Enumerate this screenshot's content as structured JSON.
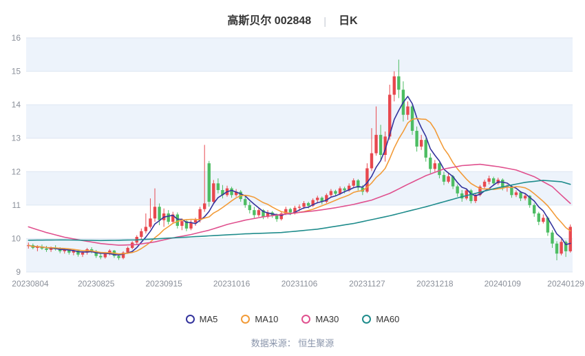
{
  "page": {
    "title_main": "高斯贝尔 002848",
    "title_separator": "|",
    "title_sub": "日K",
    "footer": "数据来源： 恒生聚源"
  },
  "chart_data": {
    "type": "candlestick",
    "title": "高斯贝尔 002848 日K",
    "ylim": [
      9,
      16
    ],
    "yticks": [
      9,
      10,
      11,
      12,
      13,
      14,
      15,
      16
    ],
    "xticks": [
      {
        "index": 0,
        "label": "20230804"
      },
      {
        "index": 15,
        "label": "20230825"
      },
      {
        "index": 30,
        "label": "20230915"
      },
      {
        "index": 45,
        "label": "20231016"
      },
      {
        "index": 60,
        "label": "20231106"
      },
      {
        "index": 75,
        "label": "20231127"
      },
      {
        "index": 90,
        "label": "20231218"
      },
      {
        "index": 105,
        "label": "20240109"
      },
      {
        "index": 120,
        "label": "20240129"
      }
    ],
    "grid": true,
    "band_color": "#edf3fb",
    "grid_color": "#dde6f2",
    "axis_label_color": "#8a8f99",
    "up_color": "#e8484e",
    "down_color": "#4dbd63",
    "candles": [
      [
        9.78,
        9.88,
        9.7,
        9.8
      ],
      [
        9.8,
        9.85,
        9.68,
        9.72
      ],
      [
        9.72,
        9.8,
        9.62,
        9.76
      ],
      [
        9.76,
        9.82,
        9.66,
        9.7
      ],
      [
        9.7,
        9.78,
        9.6,
        9.66
      ],
      [
        9.66,
        9.76,
        9.6,
        9.72
      ],
      [
        9.72,
        9.8,
        9.64,
        9.68
      ],
      [
        9.68,
        9.74,
        9.56,
        9.62
      ],
      [
        9.62,
        9.72,
        9.55,
        9.68
      ],
      [
        9.68,
        9.7,
        9.52,
        9.58
      ],
      [
        9.58,
        9.68,
        9.5,
        9.64
      ],
      [
        9.64,
        9.66,
        9.46,
        9.52
      ],
      [
        9.52,
        9.62,
        9.45,
        9.58
      ],
      [
        9.58,
        9.72,
        9.52,
        9.68
      ],
      [
        9.68,
        9.74,
        9.56,
        9.62
      ],
      [
        9.62,
        9.66,
        9.42,
        9.48
      ],
      [
        9.48,
        9.58,
        9.38,
        9.44
      ],
      [
        9.44,
        9.6,
        9.4,
        9.56
      ],
      [
        9.56,
        9.68,
        9.5,
        9.64
      ],
      [
        9.64,
        9.66,
        9.42,
        9.48
      ],
      [
        9.48,
        9.54,
        9.36,
        9.42
      ],
      [
        9.42,
        9.62,
        9.38,
        9.58
      ],
      [
        9.58,
        9.76,
        9.54,
        9.72
      ],
      [
        9.72,
        9.92,
        9.68,
        9.88
      ],
      [
        9.88,
        10.1,
        9.82,
        10.05
      ],
      [
        10.05,
        10.3,
        9.98,
        10.22
      ],
      [
        10.22,
        10.75,
        10.15,
        10.35
      ],
      [
        10.35,
        11.2,
        10.3,
        10.6
      ],
      [
        10.6,
        11.5,
        10.5,
        10.95
      ],
      [
        10.95,
        11.05,
        10.4,
        10.55
      ],
      [
        10.55,
        10.9,
        10.35,
        10.75
      ],
      [
        10.75,
        10.85,
        10.42,
        10.5
      ],
      [
        10.5,
        10.8,
        10.45,
        10.72
      ],
      [
        10.72,
        10.78,
        10.3,
        10.38
      ],
      [
        10.38,
        10.6,
        10.25,
        10.52
      ],
      [
        10.52,
        10.58,
        10.22,
        10.3
      ],
      [
        10.3,
        10.55,
        10.25,
        10.48
      ],
      [
        10.48,
        10.62,
        10.38,
        10.55
      ],
      [
        10.55,
        10.95,
        10.48,
        10.88
      ],
      [
        10.88,
        12.8,
        10.8,
        11.05
      ],
      [
        12.25,
        12.32,
        10.95,
        11.1
      ],
      [
        11.1,
        11.75,
        11.05,
        11.65
      ],
      [
        11.65,
        11.8,
        11.35,
        11.45
      ],
      [
        11.45,
        11.6,
        11.2,
        11.3
      ],
      [
        11.3,
        11.58,
        11.25,
        11.5
      ],
      [
        11.5,
        11.55,
        11.22,
        11.3
      ],
      [
        11.3,
        11.48,
        11.25,
        11.4
      ],
      [
        11.4,
        11.45,
        11.1,
        11.18
      ],
      [
        11.18,
        11.3,
        10.92,
        11.0
      ],
      [
        11.0,
        11.1,
        10.75,
        10.85
      ],
      [
        10.85,
        10.95,
        10.62,
        10.7
      ],
      [
        10.7,
        10.92,
        10.65,
        10.85
      ],
      [
        10.85,
        10.88,
        10.58,
        10.65
      ],
      [
        10.65,
        10.85,
        10.6,
        10.78
      ],
      [
        10.78,
        10.82,
        10.62,
        10.7
      ],
      [
        10.7,
        10.75,
        10.5,
        10.58
      ],
      [
        10.58,
        10.8,
        10.54,
        10.75
      ],
      [
        10.75,
        10.95,
        10.7,
        10.88
      ],
      [
        10.88,
        10.92,
        10.7,
        10.78
      ],
      [
        10.78,
        10.98,
        10.72,
        10.92
      ],
      [
        10.92,
        11.02,
        10.82,
        10.95
      ],
      [
        10.95,
        11.12,
        10.88,
        11.06
      ],
      [
        11.06,
        11.1,
        10.9,
        10.98
      ],
      [
        10.98,
        11.2,
        10.94,
        11.15
      ],
      [
        11.15,
        11.28,
        11.05,
        11.22
      ],
      [
        11.22,
        11.26,
        11.02,
        11.1
      ],
      [
        11.1,
        11.35,
        11.06,
        11.3
      ],
      [
        11.3,
        11.48,
        11.24,
        11.42
      ],
      [
        11.42,
        11.46,
        11.26,
        11.34
      ],
      [
        11.34,
        11.56,
        11.3,
        11.5
      ],
      [
        11.5,
        11.55,
        11.35,
        11.44
      ],
      [
        11.44,
        11.65,
        11.4,
        11.58
      ],
      [
        11.58,
        11.8,
        11.52,
        11.74
      ],
      [
        11.74,
        11.78,
        11.44,
        11.52
      ],
      [
        11.52,
        11.6,
        11.3,
        11.4
      ],
      [
        11.4,
        12.25,
        11.36,
        12.1
      ],
      [
        12.1,
        13.3,
        12.02,
        12.55
      ],
      [
        12.55,
        13.95,
        12.48,
        13.1
      ],
      [
        13.1,
        13.4,
        12.35,
        12.5
      ],
      [
        12.5,
        13.2,
        12.3,
        13.05
      ],
      [
        13.05,
        14.6,
        12.95,
        14.3
      ],
      [
        14.3,
        15.0,
        14.1,
        14.85
      ],
      [
        14.85,
        15.35,
        14.2,
        14.45
      ],
      [
        14.45,
        14.7,
        13.5,
        13.7
      ],
      [
        13.7,
        14.1,
        13.55,
        13.95
      ],
      [
        13.95,
        14.0,
        13.1,
        13.22
      ],
      [
        13.22,
        13.35,
        12.6,
        12.75
      ],
      [
        12.75,
        13.1,
        12.65,
        12.95
      ],
      [
        12.95,
        13.0,
        12.3,
        12.42
      ],
      [
        12.42,
        12.55,
        11.95,
        12.08
      ],
      [
        12.08,
        12.35,
        12.0,
        12.25
      ],
      [
        12.25,
        12.28,
        11.8,
        11.9
      ],
      [
        11.9,
        12.0,
        11.6,
        11.7
      ],
      [
        11.7,
        11.95,
        11.65,
        11.86
      ],
      [
        11.86,
        11.9,
        11.48,
        11.56
      ],
      [
        11.56,
        11.62,
        11.25,
        11.35
      ],
      [
        11.35,
        11.45,
        11.1,
        11.2
      ],
      [
        11.2,
        11.5,
        11.15,
        11.44
      ],
      [
        11.44,
        11.48,
        11.05,
        11.12
      ],
      [
        11.12,
        11.35,
        11.06,
        11.3
      ],
      [
        11.3,
        11.6,
        11.26,
        11.55
      ],
      [
        11.55,
        11.76,
        11.5,
        11.7
      ],
      [
        11.7,
        11.88,
        11.62,
        11.8
      ],
      [
        11.8,
        11.85,
        11.58,
        11.65
      ],
      [
        11.65,
        11.82,
        11.6,
        11.76
      ],
      [
        11.76,
        11.8,
        11.44,
        11.52
      ],
      [
        11.52,
        11.62,
        11.4,
        11.56
      ],
      [
        11.56,
        11.58,
        11.22,
        11.3
      ],
      [
        11.3,
        11.44,
        11.24,
        11.38
      ],
      [
        11.38,
        11.42,
        11.12,
        11.2
      ],
      [
        11.2,
        11.34,
        11.14,
        11.28
      ],
      [
        11.28,
        11.3,
        10.92,
        11.0
      ],
      [
        11.0,
        11.05,
        10.65,
        10.75
      ],
      [
        10.75,
        10.8,
        10.4,
        10.5
      ],
      [
        10.5,
        10.72,
        10.45,
        10.62
      ],
      [
        10.62,
        10.66,
        10.08,
        10.18
      ],
      [
        10.18,
        10.25,
        9.72,
        9.85
      ],
      [
        9.85,
        9.92,
        9.35,
        9.55
      ],
      [
        9.55,
        9.98,
        9.5,
        9.9
      ],
      [
        9.9,
        9.94,
        9.45,
        9.62
      ],
      [
        9.62,
        10.42,
        9.58,
        10.35
      ]
    ],
    "series": [
      {
        "name": "MA5",
        "color": "#33339c",
        "type": "sma",
        "window": 5
      },
      {
        "name": "MA10",
        "color": "#f29b38",
        "type": "sma",
        "window": 10
      },
      {
        "name": "MA30",
        "color": "#e0508e",
        "type": "anchors",
        "points": [
          [
            0,
            10.35
          ],
          [
            4,
            10.18
          ],
          [
            8,
            10.04
          ],
          [
            12,
            9.94
          ],
          [
            16,
            9.85
          ],
          [
            20,
            9.8
          ],
          [
            24,
            9.82
          ],
          [
            28,
            9.9
          ],
          [
            32,
            10.02
          ],
          [
            36,
            10.12
          ],
          [
            40,
            10.25
          ],
          [
            44,
            10.42
          ],
          [
            48,
            10.55
          ],
          [
            52,
            10.65
          ],
          [
            56,
            10.72
          ],
          [
            60,
            10.78
          ],
          [
            64,
            10.84
          ],
          [
            68,
            10.92
          ],
          [
            72,
            11.02
          ],
          [
            76,
            11.15
          ],
          [
            80,
            11.35
          ],
          [
            84,
            11.62
          ],
          [
            88,
            11.88
          ],
          [
            92,
            12.08
          ],
          [
            96,
            12.18
          ],
          [
            100,
            12.22
          ],
          [
            104,
            12.15
          ],
          [
            108,
            12.05
          ],
          [
            112,
            11.85
          ],
          [
            116,
            11.55
          ],
          [
            120,
            11.05
          ]
        ]
      },
      {
        "name": "MA60",
        "color": "#1f8c8c",
        "type": "anchors",
        "points": [
          [
            0,
            9.95
          ],
          [
            8,
            9.96
          ],
          [
            16,
            9.94
          ],
          [
            24,
            9.96
          ],
          [
            32,
            10.02
          ],
          [
            40,
            10.08
          ],
          [
            48,
            10.14
          ],
          [
            56,
            10.18
          ],
          [
            64,
            10.28
          ],
          [
            72,
            10.45
          ],
          [
            80,
            10.68
          ],
          [
            88,
            10.95
          ],
          [
            96,
            11.25
          ],
          [
            104,
            11.52
          ],
          [
            110,
            11.68
          ],
          [
            114,
            11.74
          ],
          [
            118,
            11.7
          ],
          [
            120,
            11.62
          ]
        ]
      }
    ]
  }
}
